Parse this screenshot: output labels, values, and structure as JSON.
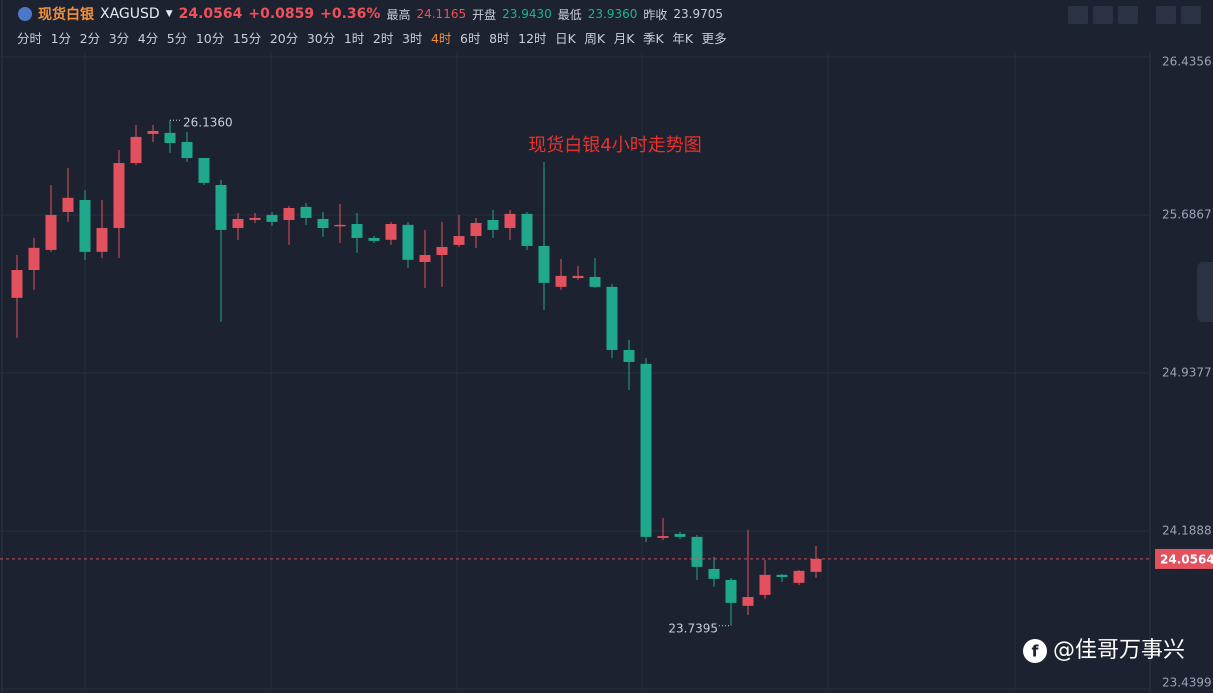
{
  "header": {
    "symbol_name": "现货白银",
    "symbol_code": "XAGUSD",
    "price": "24.0564",
    "change": "+0.0859",
    "change_pct": "+0.36%",
    "high_label": "最高",
    "high": "24.1165",
    "open_label": "开盘",
    "open": "23.9430",
    "low_label": "最低",
    "low": "23.9360",
    "prev_label": "昨收",
    "prev": "23.9705"
  },
  "toolbar": {
    "periods": [
      "分时",
      "1分",
      "2分",
      "3分",
      "4分",
      "5分",
      "10分",
      "15分",
      "20分",
      "30分",
      "1时",
      "2时",
      "3时",
      "4时",
      "6时",
      "8时",
      "12时",
      "日K",
      "周K",
      "月K",
      "季K",
      "年K",
      "更多"
    ],
    "active_index": 13
  },
  "watermark": "@佳哥万事兴",
  "chart_data": {
    "type": "candlestick",
    "title": "现货白银4小时走势图",
    "up_color": "#e2515d",
    "down_color": "#1fa88c",
    "ylim": [
      23.4352,
      26.4546
    ],
    "yticks": [
      26.4356,
      25.6867,
      24.9377,
      24.1888,
      23.4399
    ],
    "grid": true,
    "series": [
      {
        "name": "XAGUSD",
        "open": [
          25.294,
          25.426,
          25.521,
          25.701,
          25.758,
          25.512,
          25.625,
          25.933,
          26.071,
          26.076,
          26.033,
          25.957,
          25.829,
          25.625,
          25.663,
          25.687,
          25.663,
          25.725,
          25.668,
          25.635,
          25.644,
          25.578,
          25.569,
          25.64,
          25.464,
          25.497,
          25.545,
          25.587,
          25.663,
          25.625,
          25.692,
          25.54,
          25.346,
          25.388,
          25.393,
          25.346,
          25.047,
          24.981,
          24.156,
          24.175,
          24.161,
          24.009,
          23.957,
          23.834,
          23.886,
          23.981,
          23.943,
          23.995
        ],
        "high": [
          25.497,
          25.578,
          25.829,
          25.91,
          25.806,
          25.758,
          25.995,
          26.114,
          26.114,
          26.136,
          26.08,
          25.957,
          25.853,
          25.696,
          25.696,
          25.701,
          25.73,
          25.744,
          25.701,
          25.739,
          25.696,
          25.587,
          25.654,
          25.654,
          25.616,
          25.654,
          25.687,
          25.673,
          25.711,
          25.711,
          25.701,
          25.938,
          25.478,
          25.445,
          25.483,
          25.36,
          25.095,
          25.009,
          24.251,
          24.184,
          24.17,
          24.066,
          23.966,
          24.194,
          24.052,
          23.985,
          24.004,
          24.118
        ],
        "low": [
          25.104,
          25.332,
          25.512,
          25.654,
          25.474,
          25.483,
          25.483,
          25.924,
          26.033,
          25.981,
          25.938,
          25.829,
          25.18,
          25.569,
          25.649,
          25.635,
          25.545,
          25.64,
          25.583,
          25.554,
          25.507,
          25.554,
          25.545,
          25.436,
          25.341,
          25.346,
          25.535,
          25.531,
          25.578,
          25.569,
          25.521,
          25.237,
          25.332,
          25.379,
          25.341,
          25.009,
          24.857,
          24.137,
          24.146,
          24.151,
          23.957,
          23.924,
          23.7395,
          23.791,
          23.867,
          23.947,
          23.933,
          23.966
        ],
        "close": [
          25.426,
          25.531,
          25.687,
          25.768,
          25.512,
          25.625,
          25.933,
          26.057,
          26.085,
          26.028,
          25.957,
          25.839,
          25.616,
          25.668,
          25.673,
          25.654,
          25.72,
          25.673,
          25.625,
          25.64,
          25.578,
          25.564,
          25.644,
          25.474,
          25.497,
          25.535,
          25.587,
          25.649,
          25.616,
          25.692,
          25.54,
          25.365,
          25.398,
          25.398,
          25.346,
          25.047,
          24.99,
          24.161,
          24.165,
          24.161,
          24.019,
          23.962,
          23.848,
          23.876,
          23.981,
          23.971,
          24.0,
          24.0564
        ]
      }
    ],
    "max_label": {
      "index": 9,
      "label": "26.1360"
    },
    "min_label": {
      "index": 42,
      "label": "23.7395"
    },
    "last_price": {
      "value": 24.0564,
      "label": "24.0564",
      "color": "#e2515d"
    }
  }
}
